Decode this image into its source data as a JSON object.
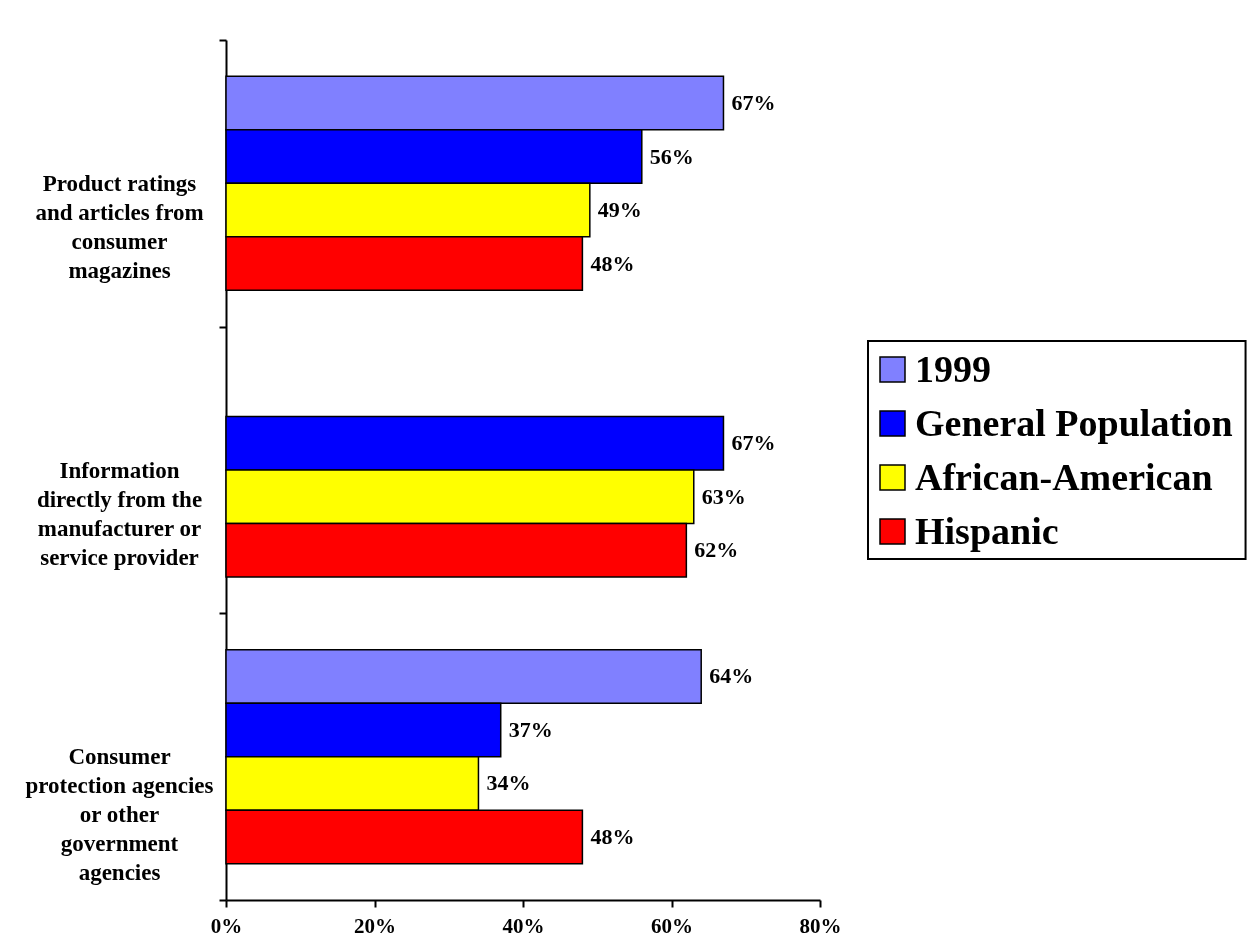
{
  "chart_data": {
    "type": "bar",
    "orientation": "horizontal",
    "categories": [
      "Product ratings and articles from consumer magazines",
      "Information directly from the manufacturer or service provider",
      "Consumer protection agencies or other government agencies"
    ],
    "series": [
      {
        "name": "1999",
        "color": "#8080ff",
        "values": [
          67,
          null,
          64
        ],
        "value_labels": [
          "67%",
          null,
          "64%"
        ]
      },
      {
        "name": "General Population",
        "color": "#0000ff",
        "values": [
          56,
          67,
          37
        ],
        "value_labels": [
          "56%",
          "67%",
          "37%"
        ]
      },
      {
        "name": "African-American",
        "color": "#ffff00",
        "values": [
          49,
          63,
          34
        ],
        "value_labels": [
          "49%",
          "63%",
          "34%"
        ]
      },
      {
        "name": "Hispanic",
        "color": "#ff0000",
        "values": [
          48,
          62,
          48
        ],
        "value_labels": [
          "48%",
          "62%",
          "48%"
        ]
      }
    ],
    "xlim": [
      0,
      80
    ],
    "xticks": [
      {
        "value": 0,
        "label": "0%"
      },
      {
        "value": 20,
        "label": "20%"
      },
      {
        "value": 40,
        "label": "40%"
      },
      {
        "value": 60,
        "label": "60%"
      },
      {
        "value": 80,
        "label": "80%"
      }
    ],
    "grid": false,
    "legend": "right"
  }
}
